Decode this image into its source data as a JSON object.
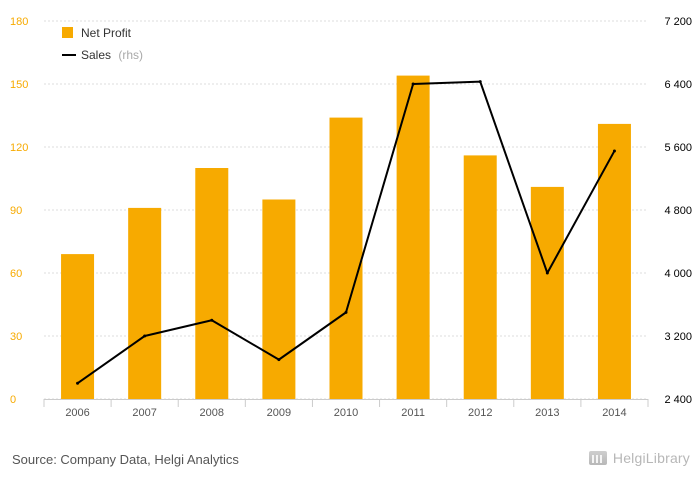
{
  "chart_data": {
    "type": "bar",
    "categories": [
      "2006",
      "2007",
      "2008",
      "2009",
      "2010",
      "2011",
      "2012",
      "2013",
      "2014"
    ],
    "series": [
      {
        "name": "Net Profit",
        "type": "bar",
        "axis": "left",
        "values": [
          69,
          91,
          110,
          95,
          134,
          154,
          116,
          101,
          131
        ],
        "color": "#F7AA00"
      },
      {
        "name": "Sales",
        "legend_suffix": "(rhs)",
        "type": "line",
        "axis": "right",
        "values": [
          2600,
          3200,
          3400,
          2900,
          3500,
          6400,
          6430,
          4000,
          5550
        ],
        "color": "#000000"
      }
    ],
    "y_left": {
      "min": 0,
      "max": 180,
      "ticks": [
        0,
        30,
        60,
        90,
        120,
        150,
        180
      ],
      "tick_labels": [
        "0",
        "30",
        "60",
        "90",
        "120",
        "150",
        "180"
      ],
      "color": "#F7AA00"
    },
    "y_right": {
      "min": 2400,
      "max": 7200,
      "ticks": [
        2400,
        3200,
        4000,
        4800,
        5600,
        6400,
        7200
      ],
      "tick_labels": [
        "2 400",
        "3 200",
        "4 000",
        "4 800",
        "5 600",
        "6 400",
        "7 200"
      ],
      "color": "#000000"
    },
    "grid": true,
    "legend_position": "top-left"
  },
  "legend": {
    "net_profit_label": "Net Profit",
    "sales_label": "Sales",
    "sales_suffix": "(rhs)"
  },
  "footer": {
    "source": "Source: Company Data, Helgi Analytics",
    "brand": "HelgiLibrary"
  }
}
